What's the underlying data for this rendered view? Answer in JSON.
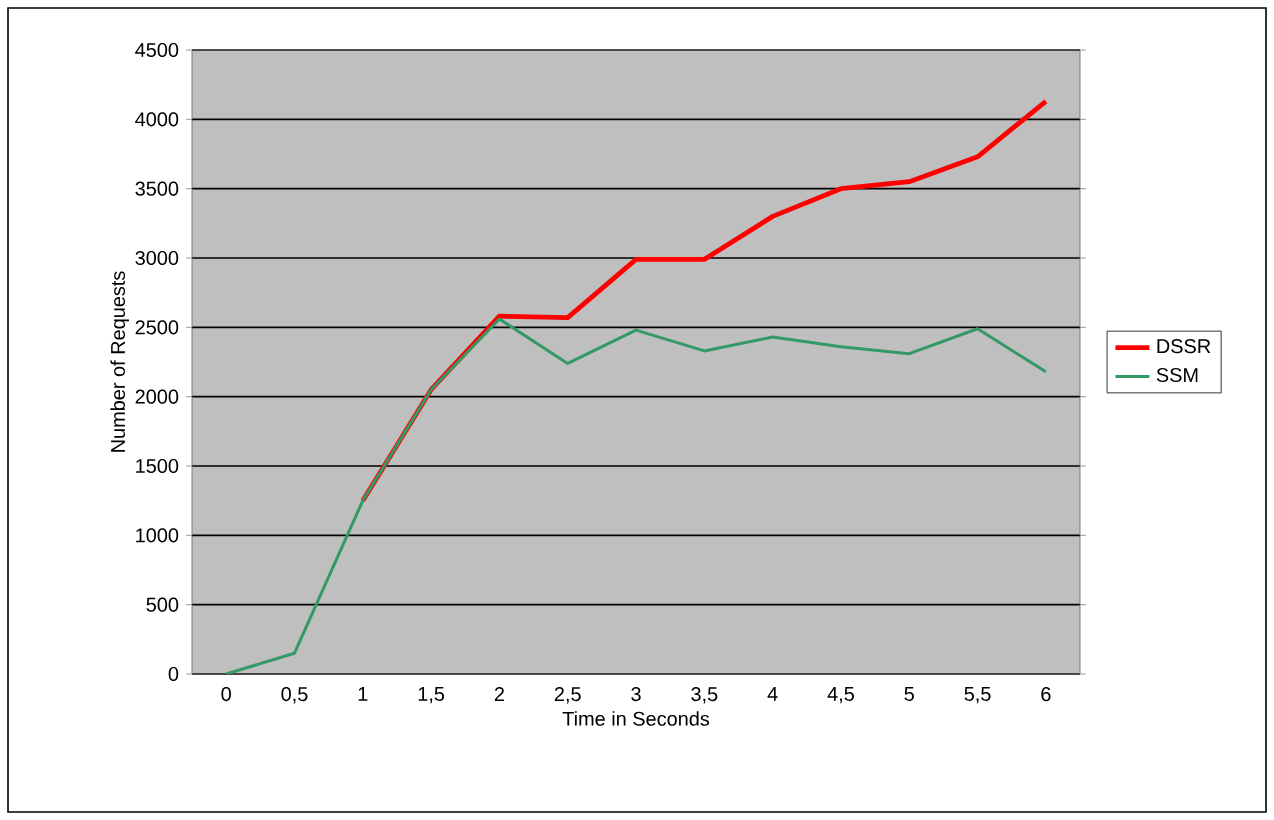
{
  "chart_data": {
    "type": "line",
    "xlabel": "Time in Seconds",
    "ylabel": "Number of Requests",
    "categories": [
      "0",
      "0,5",
      "1",
      "1,5",
      "2",
      "2,5",
      "3",
      "3,5",
      "4",
      "4,5",
      "5",
      "5,5",
      "6"
    ],
    "ylim": [
      0,
      4500
    ],
    "yticks": [
      0,
      500,
      1000,
      1500,
      2000,
      2500,
      3000,
      3500,
      4000,
      4500
    ],
    "grid": "y",
    "legend": "right",
    "marker": "none",
    "line_style": "solid",
    "series": [
      {
        "name": "DSSR",
        "color": "#ff0000",
        "values": [
          null,
          null,
          1250,
          2050,
          2580,
          2570,
          2990,
          2990,
          3300,
          3500,
          3550,
          3730,
          4130
        ]
      },
      {
        "name": "SSM",
        "color": "#339966",
        "values": [
          0,
          150,
          1250,
          2050,
          2560,
          2240,
          2480,
          2330,
          2430,
          2360,
          2310,
          2490,
          2180
        ]
      }
    ]
  }
}
